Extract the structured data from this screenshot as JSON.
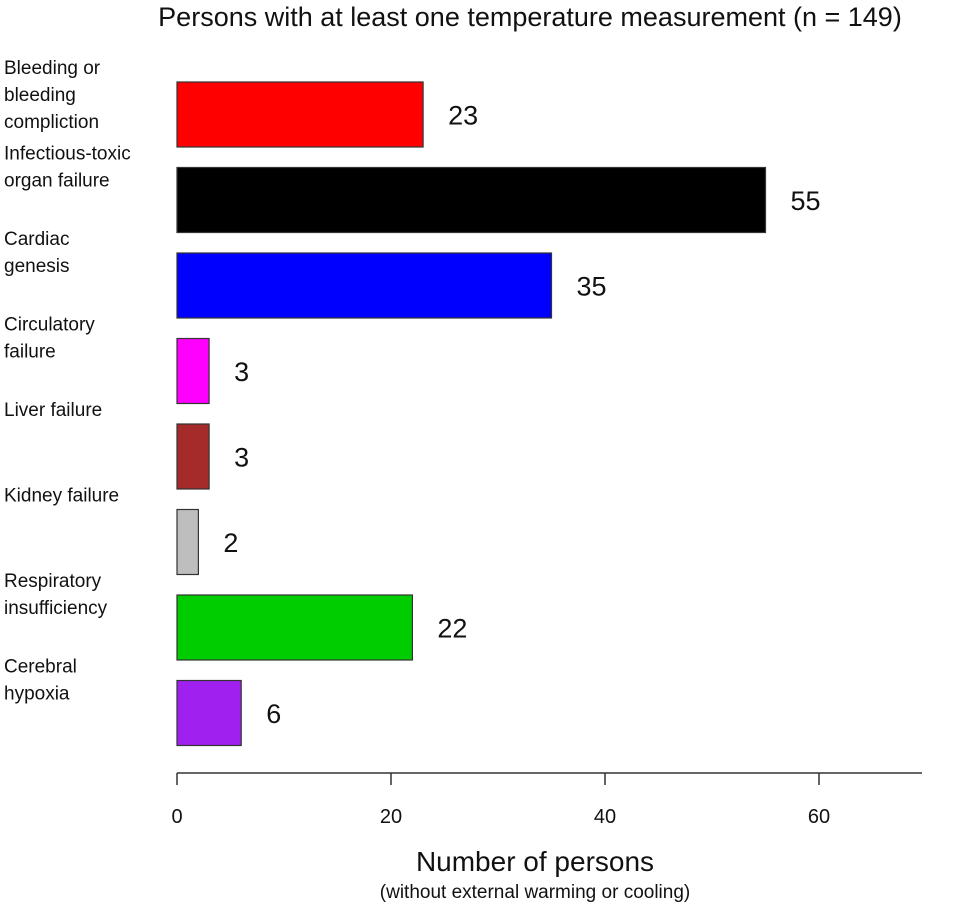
{
  "chart_data": {
    "type": "bar",
    "orientation": "horizontal",
    "title": "Persons with at least one temperature measurement (n = 149)",
    "categories": [
      [
        "Bleeding or",
        "bleeding",
        "compliction"
      ],
      [
        "Infectious-toxic",
        "organ failure"
      ],
      [
        "Cardiac",
        "genesis"
      ],
      [
        "Circulatory",
        "failure"
      ],
      [
        "Liver failure"
      ],
      [
        "Kidney failure"
      ],
      [
        "Respiratory",
        "insufficiency"
      ],
      [
        "Cerebral",
        "hypoxia"
      ]
    ],
    "values": [
      23,
      55,
      35,
      3,
      3,
      2,
      22,
      6
    ],
    "value_labels": [
      "23",
      "55",
      "35",
      "3",
      "3",
      "2",
      "22",
      "6"
    ],
    "colors": [
      "#ff0000",
      "#000000",
      "#0000ff",
      "#ff00ff",
      "#a52a2a",
      "#bebebe",
      "#00cd00",
      "#a020f0"
    ],
    "xlabel": "Number of persons",
    "xlabel_sub": "(without external warming or cooling)",
    "xlim": [
      0,
      70
    ],
    "xticks": [
      0,
      20,
      40,
      60
    ],
    "xtick_labels": [
      "0",
      "20",
      "40",
      "60"
    ],
    "grid": false,
    "legend": "none"
  }
}
